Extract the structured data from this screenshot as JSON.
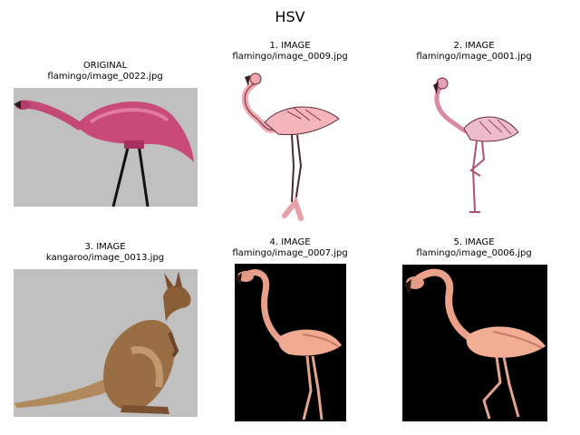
{
  "figure": {
    "title": "HSV"
  },
  "panels": [
    {
      "line1": "ORIGINAL",
      "line2": "flamingo/image_0022.jpg",
      "background": "#c0c0c0",
      "subject": "pink lawn flamingo"
    },
    {
      "line1": "1. IMAGE",
      "line2": "flamingo/image_0009.jpg",
      "background": "#ffffff",
      "subject": "flamingo sketch"
    },
    {
      "line1": "2. IMAGE",
      "line2": "flamingo/image_0001.jpg",
      "background": "#ffffff",
      "subject": "flamingo line drawing"
    },
    {
      "line1": "3. IMAGE",
      "line2": "kangaroo/image_0013.jpg",
      "background": "#c0c0c0",
      "subject": "kangaroo"
    },
    {
      "line1": "4. IMAGE",
      "line2": "flamingo/image_0007.jpg",
      "background": "#000000",
      "subject": "flamingo on black"
    },
    {
      "line1": "5. IMAGE",
      "line2": "flamingo/image_0006.jpg",
      "background": "#000000",
      "subject": "flamingo on black"
    }
  ]
}
